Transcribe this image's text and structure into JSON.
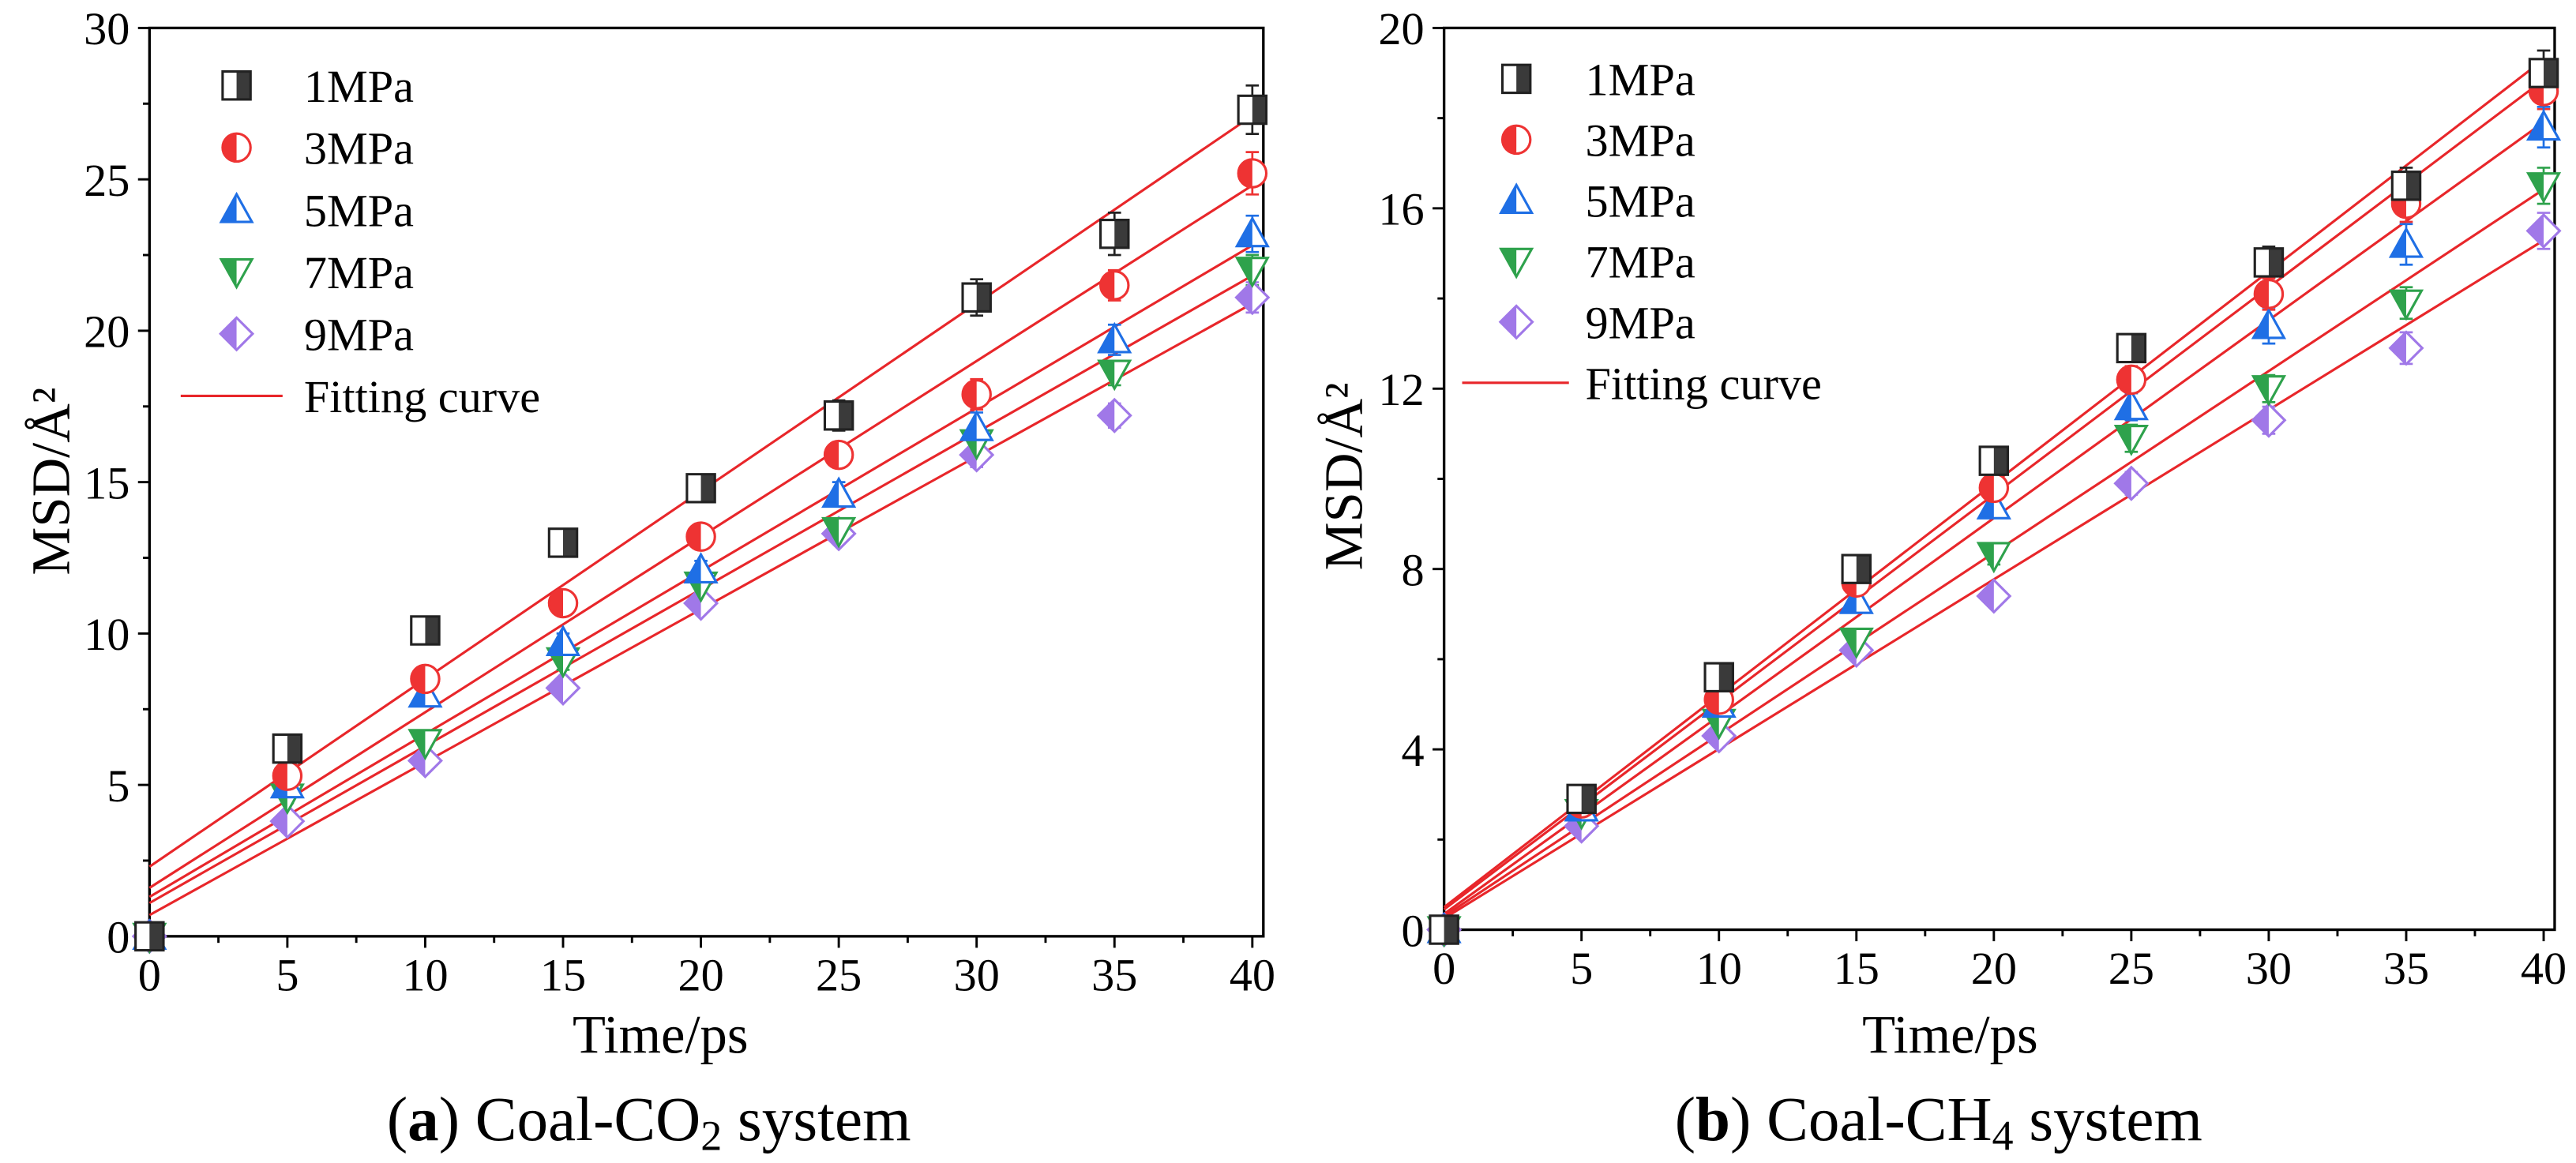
{
  "chart_data": [
    {
      "type": "scatter",
      "caption": {
        "open": "(",
        "label": "a",
        "close": ")",
        "main": " Coal-CO",
        "sub": "2",
        "tail": " system"
      },
      "xlabel": "Time/ps",
      "ylabel": "MSD/Å²",
      "xlim": [
        0,
        40.4
      ],
      "ylim": [
        0,
        30
      ],
      "xticks": [
        0,
        5,
        10,
        15,
        20,
        25,
        30,
        35,
        40
      ],
      "yticks": [
        0,
        5,
        10,
        15,
        20,
        25,
        30
      ],
      "x": [
        0,
        5,
        10,
        15,
        20,
        25,
        30,
        35,
        40
      ],
      "legend": "top-left",
      "fit_label": "Fitting curve",
      "fit_color": "#e8262a",
      "series": [
        {
          "name": "1MPa",
          "marker": "square",
          "color": "#3a3a3a",
          "values": [
            0,
            6.2,
            10.1,
            13.0,
            14.8,
            17.2,
            21.1,
            23.2,
            27.3
          ],
          "errors": [
            0,
            0.3,
            0.3,
            0.3,
            0.3,
            0.5,
            0.6,
            0.7,
            0.8
          ],
          "fit": {
            "intercept": 2.3,
            "slope": 0.62
          }
        },
        {
          "name": "3MPa",
          "marker": "circle",
          "color": "#ee3333",
          "values": [
            0,
            5.3,
            8.5,
            11.0,
            13.2,
            15.9,
            17.9,
            21.5,
            25.2
          ],
          "errors": [
            0,
            0.3,
            0.3,
            0.3,
            0.3,
            0.4,
            0.5,
            0.5,
            0.7
          ],
          "fit": {
            "intercept": 1.6,
            "slope": 0.58
          }
        },
        {
          "name": "5MPa",
          "marker": "triangle-up",
          "color": "#1f6fe5",
          "values": [
            0,
            5.0,
            8.0,
            9.7,
            12.1,
            14.6,
            16.8,
            19.7,
            23.2
          ],
          "errors": [
            0,
            0.2,
            0.3,
            0.3,
            0.3,
            0.4,
            0.5,
            0.5,
            0.6
          ],
          "fit": {
            "intercept": 1.3,
            "slope": 0.538
          }
        },
        {
          "name": "7MPa",
          "marker": "triangle-down",
          "color": "#2ea24c",
          "values": [
            0,
            4.6,
            6.4,
            9.1,
            11.6,
            13.4,
            16.3,
            18.6,
            22.0
          ],
          "errors": [
            0,
            0.2,
            0.3,
            0.3,
            0.3,
            0.3,
            0.4,
            0.4,
            0.5
          ],
          "fit": {
            "intercept": 1.1,
            "slope": 0.518
          }
        },
        {
          "name": "9MPa",
          "marker": "diamond",
          "color": "#a078e8",
          "values": [
            0,
            3.8,
            5.8,
            8.2,
            11.0,
            13.3,
            15.9,
            17.2,
            21.1
          ],
          "errors": [
            0,
            0.2,
            0.2,
            0.3,
            0.3,
            0.3,
            0.4,
            0.4,
            0.5
          ],
          "fit": {
            "intercept": 0.7,
            "slope": 0.505
          }
        }
      ]
    },
    {
      "type": "scatter",
      "caption": {
        "open": "(",
        "label": "b",
        "close": ")",
        "main": " Coal-CH",
        "sub": "4",
        "tail": " system"
      },
      "xlabel": "Time/ps",
      "ylabel": "MSD/Å²",
      "xlim": [
        0,
        40.4
      ],
      "ylim": [
        0,
        20
      ],
      "xticks": [
        0,
        5,
        10,
        15,
        20,
        25,
        30,
        35,
        40
      ],
      "yticks": [
        0,
        4,
        8,
        12,
        16,
        20
      ],
      "x": [
        0,
        5,
        10,
        15,
        20,
        25,
        30,
        35,
        40
      ],
      "legend": "top-left",
      "fit_label": "Fitting curve",
      "fit_color": "#e8262a",
      "series": [
        {
          "name": "1MPa",
          "marker": "square",
          "color": "#3a3a3a",
          "values": [
            0,
            2.9,
            5.6,
            8.0,
            10.4,
            12.9,
            14.8,
            16.5,
            19.0
          ],
          "errors": [
            0,
            0.15,
            0.2,
            0.25,
            0.25,
            0.3,
            0.35,
            0.4,
            0.5
          ],
          "fit": {
            "intercept": 0.5,
            "slope": 0.47
          }
        },
        {
          "name": "3MPa",
          "marker": "circle",
          "color": "#ee3333",
          "values": [
            0,
            2.8,
            5.1,
            7.7,
            9.8,
            12.2,
            14.1,
            16.1,
            18.6
          ],
          "errors": [
            0,
            0.15,
            0.2,
            0.2,
            0.25,
            0.3,
            0.35,
            0.4,
            0.4
          ],
          "fit": {
            "intercept": 0.45,
            "slope": 0.46
          }
        },
        {
          "name": "5MPa",
          "marker": "triangle-up",
          "color": "#1f6fe5",
          "values": [
            0,
            2.7,
            5.0,
            7.3,
            9.4,
            11.6,
            13.4,
            15.2,
            17.8
          ],
          "errors": [
            0,
            0.15,
            0.2,
            0.2,
            0.25,
            0.3,
            0.4,
            0.45,
            0.45
          ],
          "fit": {
            "intercept": 0.35,
            "slope": 0.439
          }
        },
        {
          "name": "7MPa",
          "marker": "triangle-down",
          "color": "#2ea24c",
          "values": [
            0,
            2.6,
            4.6,
            6.4,
            8.3,
            10.9,
            12.0,
            13.9,
            16.5
          ],
          "errors": [
            0,
            0.1,
            0.15,
            0.2,
            0.2,
            0.3,
            0.3,
            0.35,
            0.4
          ],
          "fit": {
            "intercept": 0.3,
            "slope": 0.403
          }
        },
        {
          "name": "9MPa",
          "marker": "diamond",
          "color": "#a078e8",
          "values": [
            0,
            2.3,
            4.3,
            6.2,
            7.4,
            9.9,
            11.3,
            12.9,
            15.5
          ],
          "errors": [
            0,
            0.1,
            0.15,
            0.2,
            0.2,
            0.25,
            0.3,
            0.35,
            0.4
          ],
          "fit": {
            "intercept": 0.25,
            "slope": 0.376
          }
        }
      ]
    }
  ]
}
